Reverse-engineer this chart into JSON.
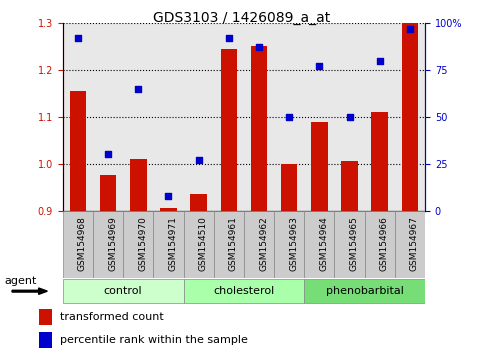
{
  "title": "GDS3103 / 1426089_a_at",
  "samples": [
    "GSM154968",
    "GSM154969",
    "GSM154970",
    "GSM154971",
    "GSM154510",
    "GSM154961",
    "GSM154962",
    "GSM154963",
    "GSM154964",
    "GSM154965",
    "GSM154966",
    "GSM154967"
  ],
  "bar_values": [
    1.155,
    0.975,
    1.01,
    0.905,
    0.935,
    1.245,
    1.25,
    1.0,
    1.09,
    1.005,
    1.11,
    1.3
  ],
  "dot_values": [
    92,
    30,
    65,
    8,
    27,
    92,
    87,
    50,
    77,
    50,
    80,
    97
  ],
  "ylim_left": [
    0.9,
    1.3
  ],
  "ylim_right": [
    0,
    100
  ],
  "yticks_left": [
    0.9,
    1.0,
    1.1,
    1.2,
    1.3
  ],
  "yticks_right": [
    0,
    25,
    50,
    75,
    100
  ],
  "ytick_labels_right": [
    "0",
    "25",
    "50",
    "75",
    "100%"
  ],
  "bar_color": "#cc1100",
  "dot_color": "#0000cc",
  "bar_bottom": 0.9,
  "groups": [
    {
      "label": "control",
      "start": 0,
      "end": 4,
      "color": "#ccffcc"
    },
    {
      "label": "cholesterol",
      "start": 4,
      "end": 8,
      "color": "#aaffaa"
    },
    {
      "label": "phenobarbital",
      "start": 8,
      "end": 12,
      "color": "#77dd77"
    }
  ],
  "agent_label": "agent",
  "legend_bar_label": "transformed count",
  "legend_dot_label": "percentile rank within the sample",
  "axis_bg": "#e8e8e8",
  "title_fontsize": 10,
  "tick_fontsize": 7,
  "label_fontsize": 8,
  "group_fontsize": 8,
  "agent_fontsize": 8
}
